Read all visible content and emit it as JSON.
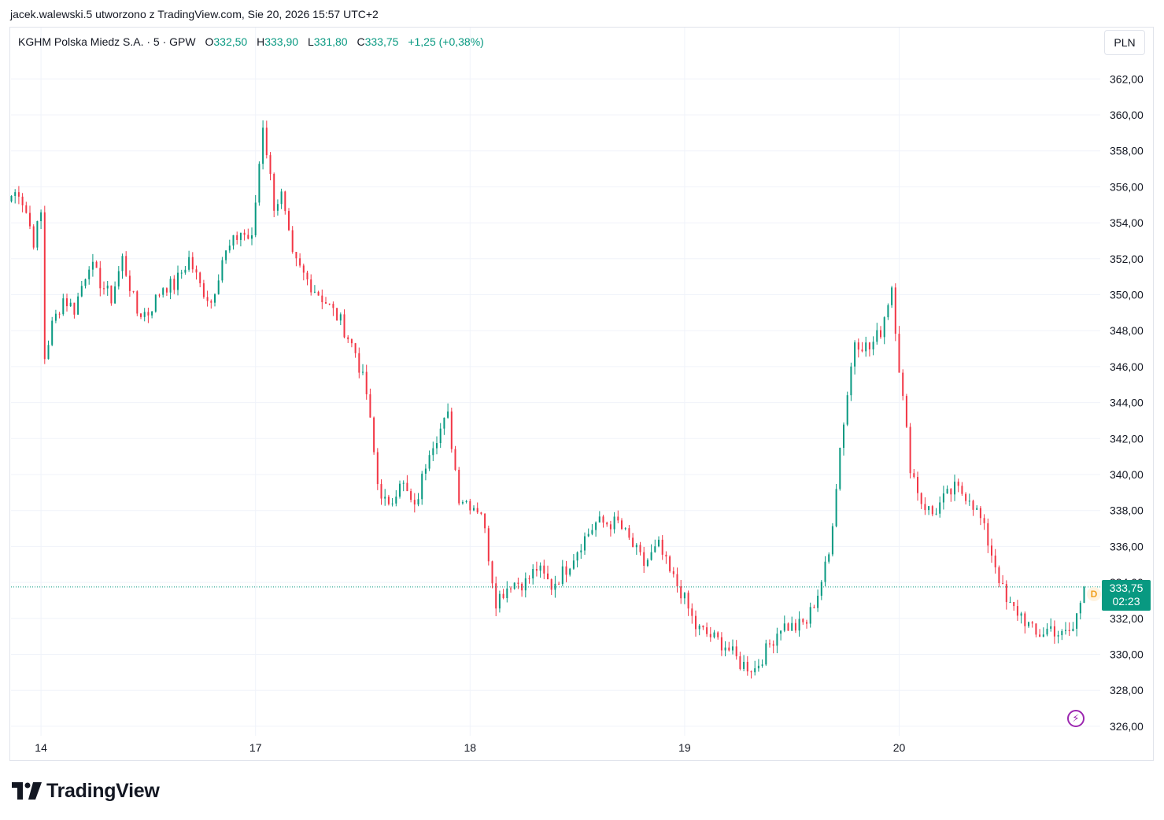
{
  "header": {
    "text": "jacek.walewski.5 utworzono z TradingView.com, Sie 20, 2026 15:57 UTC+2"
  },
  "legend": {
    "symbol": "KGHM Polska Miedz S.A. · 5 · GPW",
    "open_label": "O",
    "open": "332,50",
    "high_label": "H",
    "high": "333,90",
    "low_label": "L",
    "low": "331,80",
    "close_label": "C",
    "close": "333,75",
    "change": "+1,25 (+0,38%)"
  },
  "currency_button": "PLN",
  "price_tag": {
    "price": "333,75",
    "countdown": "02:23"
  },
  "dividend_badge": "D",
  "logo": {
    "text": "TradingView"
  },
  "colors": {
    "up": "#089981",
    "down": "#f23645",
    "grid": "#f0f3fa",
    "axis_text": "#131722"
  },
  "chart_data": {
    "type": "candlestick",
    "y_ticks": [
      "326,00",
      "328,00",
      "330,00",
      "332,00",
      "334,00",
      "336,00",
      "338,00",
      "340,00",
      "342,00",
      "344,00",
      "346,00",
      "348,00",
      "350,00",
      "352,00",
      "354,00",
      "356,00",
      "358,00",
      "360,00",
      "362,00"
    ],
    "x_ticks": [
      "14",
      "17",
      "18",
      "19",
      "20"
    ],
    "ylim": [
      325.5,
      363.5
    ],
    "last_price": 333.75,
    "price_path": [
      [
        0,
        355.5
      ],
      [
        2,
        355.8
      ],
      [
        4,
        354.6
      ],
      [
        6,
        353.0
      ],
      [
        8,
        354.5
      ],
      [
        9,
        346.5
      ],
      [
        11,
        348.3
      ],
      [
        14,
        349.8
      ],
      [
        17,
        349.2
      ],
      [
        21,
        351.8
      ],
      [
        24,
        350.7
      ],
      [
        27,
        349.8
      ],
      [
        30,
        352.0
      ],
      [
        34,
        349.0
      ],
      [
        37,
        349.0
      ],
      [
        41,
        350.5
      ],
      [
        44,
        350.5
      ],
      [
        48,
        352.0
      ],
      [
        51,
        350.5
      ],
      [
        54,
        349.6
      ],
      [
        57,
        352.0
      ],
      [
        62,
        353.5
      ],
      [
        65,
        353.0
      ],
      [
        68,
        359.5
      ],
      [
        71,
        355.0
      ],
      [
        73,
        355.5
      ],
      [
        76,
        352.0
      ],
      [
        80,
        350.8
      ],
      [
        85,
        349.6
      ],
      [
        89,
        348.5
      ],
      [
        93,
        346.8
      ],
      [
        96,
        344.5
      ],
      [
        99,
        339.5
      ],
      [
        102,
        338.0
      ],
      [
        105,
        339.8
      ],
      [
        109,
        338.0
      ],
      [
        113,
        341.5
      ],
      [
        118,
        343.2
      ],
      [
        121,
        338.8
      ],
      [
        127,
        338.0
      ],
      [
        131,
        333.0
      ],
      [
        135,
        334.0
      ],
      [
        139,
        334.0
      ],
      [
        142,
        334.8
      ],
      [
        146,
        333.8
      ],
      [
        150,
        334.8
      ],
      [
        154,
        336.2
      ],
      [
        158,
        337.3
      ],
      [
        164,
        337.3
      ],
      [
        168,
        336.0
      ],
      [
        171,
        335.0
      ],
      [
        175,
        336.0
      ],
      [
        178,
        334.5
      ],
      [
        181,
        333.5
      ],
      [
        185,
        331.5
      ],
      [
        189,
        331.0
      ],
      [
        193,
        330.5
      ],
      [
        197,
        329.5
      ],
      [
        201,
        329.2
      ],
      [
        204,
        330.2
      ],
      [
        208,
        331.6
      ],
      [
        212,
        331.5
      ],
      [
        215,
        331.8
      ],
      [
        218,
        333.4
      ],
      [
        221,
        335.5
      ],
      [
        224,
        341.5
      ],
      [
        228,
        347.5
      ],
      [
        232,
        347.0
      ],
      [
        235,
        348.0
      ],
      [
        238,
        350.5
      ],
      [
        240,
        346.0
      ],
      [
        243,
        340.5
      ],
      [
        246,
        338.5
      ],
      [
        249,
        337.8
      ],
      [
        252,
        338.6
      ],
      [
        255,
        339.2
      ],
      [
        259,
        338.8
      ],
      [
        262,
        337.5
      ],
      [
        266,
        335.0
      ],
      [
        269,
        332.8
      ],
      [
        273,
        332.2
      ],
      [
        277,
        331.0
      ],
      [
        281,
        331.5
      ],
      [
        284,
        331.0
      ],
      [
        287,
        331.4
      ],
      [
        290,
        333.75
      ]
    ]
  }
}
